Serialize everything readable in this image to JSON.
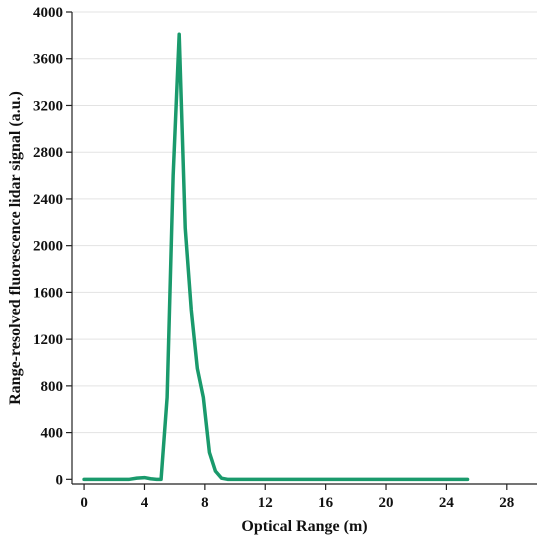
{
  "chart_data": {
    "type": "line",
    "xlabel": "Optical Range (m)",
    "ylabel": "Range-resolved fluorescence lidar signal (a.u.)",
    "xlim": [
      -0.8,
      30
    ],
    "ylim": [
      -40,
      4000
    ],
    "xticks": [
      0,
      4,
      8,
      12,
      16,
      20,
      24,
      28
    ],
    "yticks": [
      0,
      400,
      800,
      1200,
      1600,
      2000,
      2400,
      2800,
      3200,
      3600,
      4000
    ],
    "grid": "horizontal",
    "colors": {
      "series": "#1a9a6c"
    },
    "series": [
      {
        "x": [
          0,
          0.5,
          1,
          1.5,
          2,
          2.5,
          3,
          3.5,
          4,
          4.4,
          4.8,
          5.1,
          5.5,
          5.9,
          6.3,
          6.7,
          7.1,
          7.5,
          7.9,
          8.3,
          8.7,
          9.1,
          9.5,
          10,
          10.5,
          11,
          12,
          14,
          16,
          18,
          20,
          22,
          24,
          25.4
        ],
        "y": [
          0,
          0,
          0,
          0,
          0,
          0,
          0,
          10,
          15,
          5,
          0,
          0,
          700,
          2600,
          3810,
          2150,
          1450,
          950,
          700,
          230,
          70,
          10,
          0,
          0,
          0,
          0,
          0,
          0,
          0,
          0,
          0,
          0,
          0,
          0
        ]
      }
    ]
  }
}
